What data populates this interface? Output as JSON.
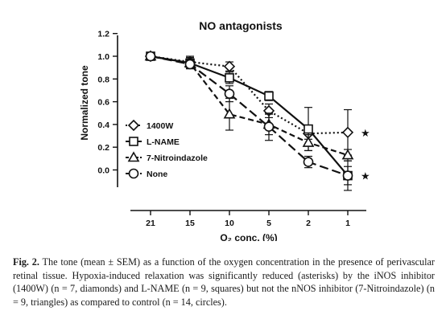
{
  "chart_data": {
    "type": "line",
    "title": "NO antagonists",
    "ylabel": "Normalized tone",
    "xlabel": "O₂ conc. (%)",
    "categories": [
      "21",
      "15",
      "10",
      "5",
      "2",
      "1"
    ],
    "y_ticks": [
      "1.2",
      "1.0",
      "0.8",
      "0.6",
      "0.4",
      "0.2",
      "0.0"
    ],
    "ylim": [
      -0.14,
      1.2
    ],
    "grid": false,
    "legend_position": "left",
    "series": [
      {
        "name": "1400W",
        "marker": "diamond",
        "line": "dotted",
        "values": [
          1.0,
          0.95,
          0.91,
          0.52,
          0.32,
          0.33
        ],
        "errors": [
          0.0,
          0.05,
          0.04,
          0.06,
          0.05,
          0.2
        ]
      },
      {
        "name": "L-NAME",
        "marker": "square",
        "line": "solid",
        "values": [
          1.0,
          0.94,
          0.81,
          0.65,
          0.36,
          -0.05
        ],
        "errors": [
          0.0,
          0.05,
          0.05,
          0.04,
          0.19,
          0.08
        ]
      },
      {
        "name": "7-Nitroindazole",
        "marker": "triangle",
        "line": "dash",
        "values": [
          1.0,
          0.94,
          0.49,
          0.4,
          0.24,
          0.13
        ],
        "errors": [
          0.0,
          0.04,
          0.14,
          0.09,
          0.07,
          0.05
        ]
      },
      {
        "name": "None",
        "marker": "circle",
        "line": "longdash",
        "values": [
          1.0,
          0.93,
          0.67,
          0.38,
          0.07,
          -0.05
        ],
        "errors": [
          0.0,
          0.04,
          0.07,
          0.12,
          0.05,
          0.13
        ]
      }
    ],
    "annotations": [
      {
        "text": "★",
        "x": "1",
        "y": 0.33
      },
      {
        "text": "★",
        "x": "1",
        "y": -0.05
      }
    ]
  },
  "caption": {
    "label": "Fig. 2.",
    "text": "The tone (mean ± SEM) as a function of the oxygen concentration in the presence of perivascular retinal tissue. Hypoxia-induced relaxation was significantly reduced (asterisks) by the iNOS inhibitor (1400W) (n = 7, diamonds) and L-NAME (n = 9, squares) but not the nNOS inhibitor (7-Nitroindazole) (n = 9, triangles) as compared to control (n = 14, circles)."
  }
}
